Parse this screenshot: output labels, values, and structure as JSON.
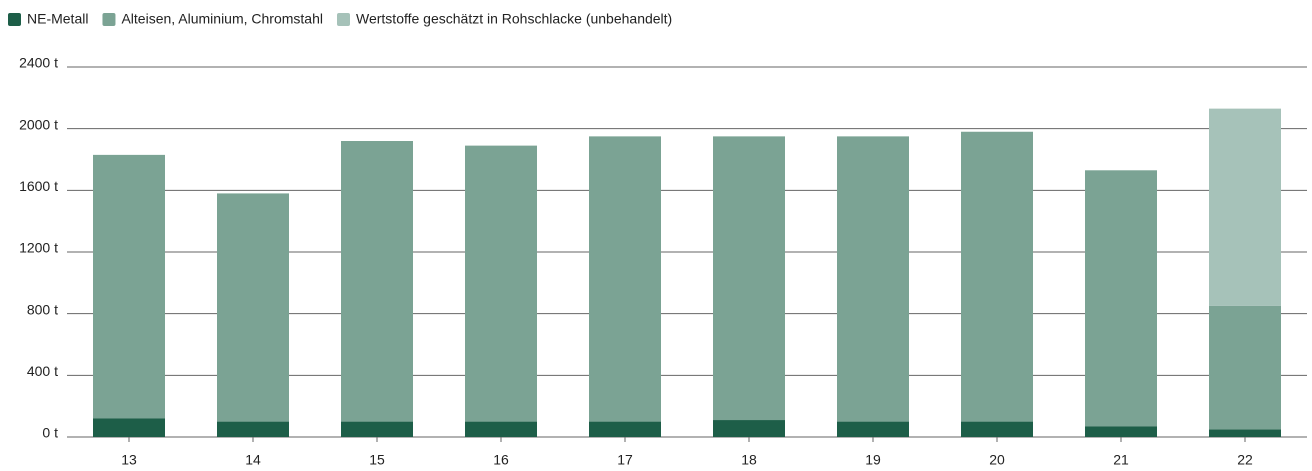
{
  "chart_data": {
    "type": "stacked_bar",
    "categories": [
      "13",
      "14",
      "15",
      "16",
      "17",
      "18",
      "19",
      "20",
      "21",
      "22"
    ],
    "series": [
      {
        "name": "NE-Metall",
        "color": "#1d5e48",
        "values": [
          120,
          100,
          100,
          100,
          100,
          110,
          100,
          100,
          70,
          50
        ]
      },
      {
        "name": "Alteisen, Aluminium, Chromstahl",
        "color": "#7ba394",
        "values": [
          1710,
          1480,
          1820,
          1790,
          1850,
          1840,
          1850,
          1880,
          1660,
          800
        ]
      },
      {
        "name": "Wertstoffe geschätzt in Rohschlacke (unbehandelt)",
        "color": "#a6c2b9",
        "values": [
          null,
          null,
          null,
          null,
          null,
          null,
          null,
          null,
          null,
          1280
        ]
      }
    ],
    "ylim": [
      0,
      2400
    ],
    "yticks": [
      {
        "value": 0,
        "label": "0 t"
      },
      {
        "value": 400,
        "label": "400 t"
      },
      {
        "value": 800,
        "label": "800 t"
      },
      {
        "value": 1200,
        "label": "1200 t"
      },
      {
        "value": 1600,
        "label": "1600 t"
      },
      {
        "value": 2000,
        "label": "2000 t"
      },
      {
        "value": 2400,
        "label": "2400 t"
      }
    ],
    "grid": true
  }
}
